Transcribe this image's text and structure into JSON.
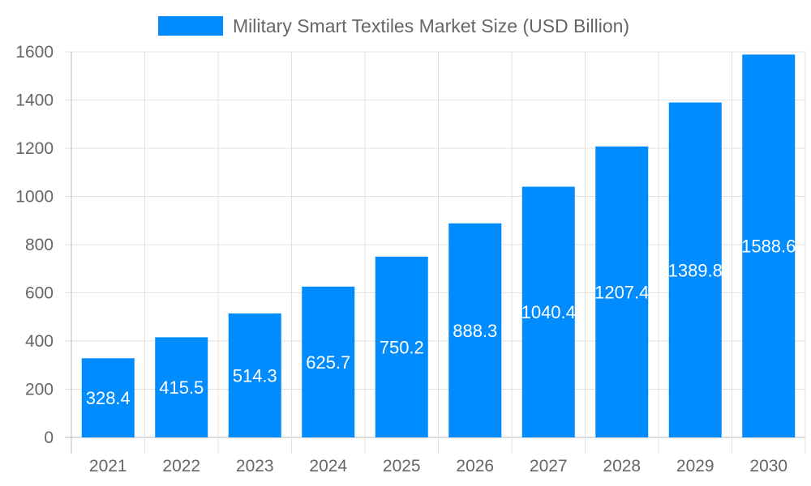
{
  "chart_data": {
    "type": "bar",
    "categories": [
      "2021",
      "2022",
      "2023",
      "2024",
      "2025",
      "2026",
      "2027",
      "2028",
      "2029",
      "2030"
    ],
    "series": [
      {
        "name": "Military Smart Textiles Market Size (USD Billion)",
        "values": [
          328.4,
          415.5,
          514.3,
          625.7,
          750.2,
          888.3,
          1040.4,
          1207.4,
          1389.8,
          1588.6
        ],
        "color": "#008cff"
      }
    ],
    "ylim": [
      0,
      1600
    ],
    "yticks": [
      0,
      200,
      400,
      600,
      800,
      1000,
      1200,
      1400,
      1600
    ],
    "grid": true,
    "legend": "top",
    "data_labels": true
  }
}
